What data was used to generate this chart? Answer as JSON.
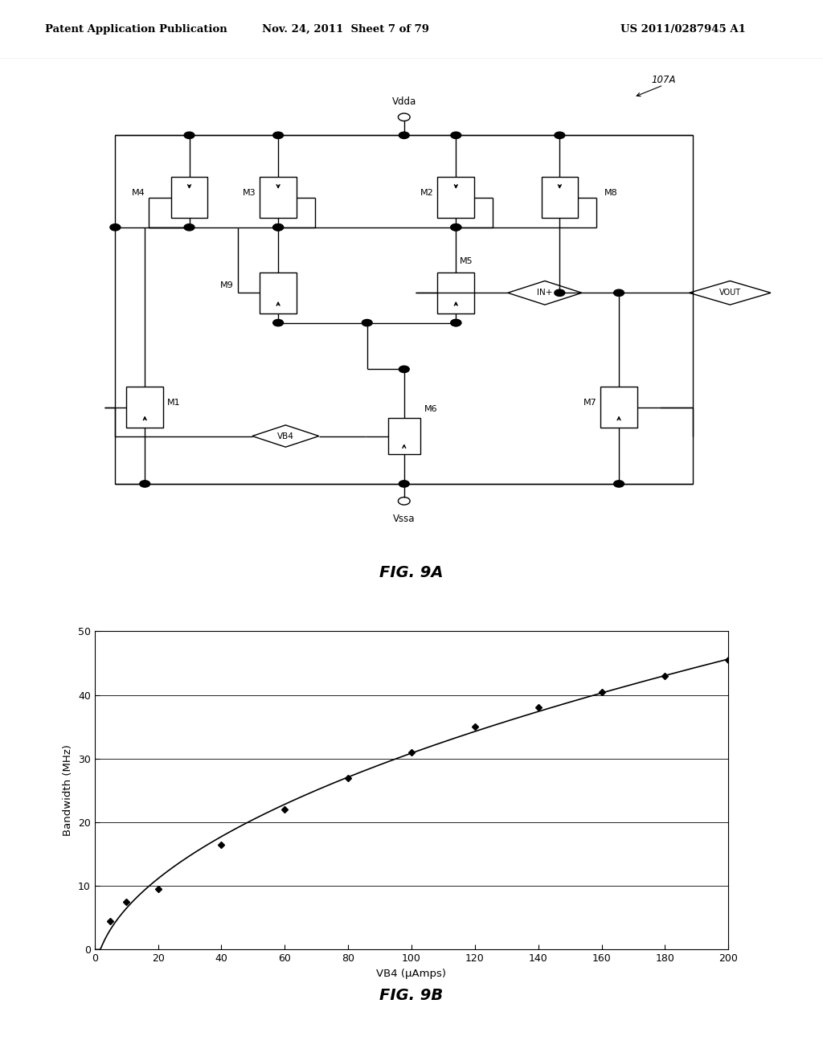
{
  "header_left": "Patent Application Publication",
  "header_mid": "Nov. 24, 2011  Sheet 7 of 79",
  "header_right": "US 2011/0287945 A1",
  "fig9a_label": "FIG. 9A",
  "fig9b_label": "FIG. 9B",
  "circuit_label": "107A",
  "graph_xlabel": "VB4 (μAmps)",
  "graph_ylabel": "Bandwidth (MHz)",
  "graph_xlim": [
    0,
    200
  ],
  "graph_ylim": [
    0,
    50
  ],
  "graph_xticks": [
    0,
    20,
    40,
    60,
    80,
    100,
    120,
    140,
    160,
    180,
    200
  ],
  "graph_yticks": [
    0,
    10,
    20,
    30,
    40,
    50
  ],
  "data_x": [
    5,
    10,
    20,
    40,
    60,
    80,
    100,
    120,
    140,
    160,
    180,
    200
  ],
  "data_y": [
    4.5,
    7.5,
    9.5,
    16.5,
    22.0,
    27.0,
    31.0,
    35.0,
    38.0,
    40.5,
    43.0,
    45.5
  ],
  "background_color": "#ffffff",
  "line_color": "#000000",
  "marker_color": "#000000"
}
